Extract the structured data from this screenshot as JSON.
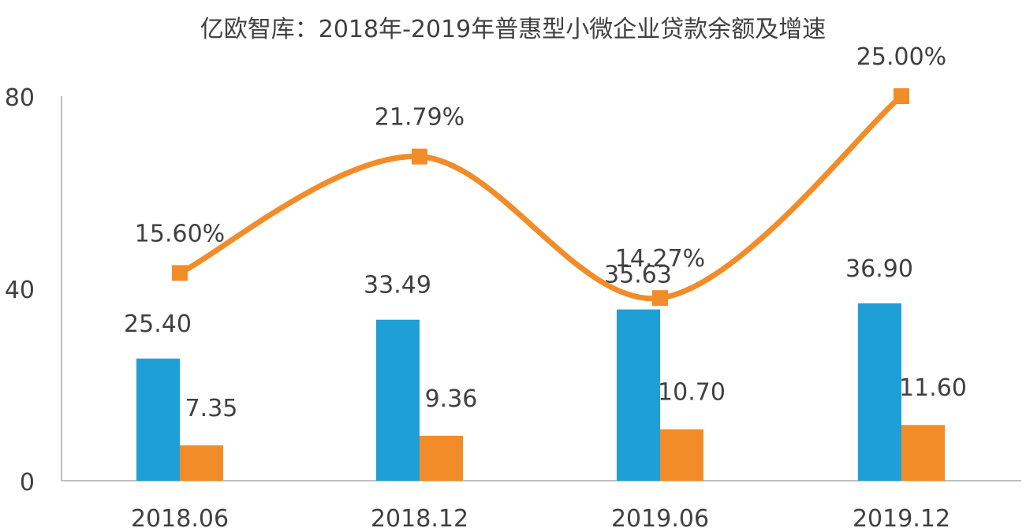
{
  "title": "亿欧智库：2018年-2019年普惠型小微企业贷款余额及增速",
  "colors": {
    "series_a": "#1e9fd5",
    "series_b": "#f28c28",
    "growth_line": "#f28c28",
    "axis": "#bfbfbf",
    "text": "#404040"
  },
  "chart_data": {
    "type": "bar",
    "title": "亿欧智库：2018年-2019年普惠型小微企业贷款余额及增速",
    "categories": [
      "2018.06",
      "2018.12",
      "2019.06",
      "2019.12"
    ],
    "series": [
      {
        "values": [
          25.4,
          33.49,
          35.63,
          36.9
        ],
        "labels": [
          "25.40",
          "33.49",
          "35.63",
          "36.90"
        ]
      },
      {
        "values": [
          7.35,
          9.36,
          10.7,
          11.6
        ],
        "labels": [
          "7.35",
          "9.36",
          "10.70",
          "11.60"
        ]
      }
    ],
    "line_series": {
      "type": "line",
      "smooth": true,
      "marker": "square",
      "values": [
        15.6,
        21.79,
        14.27,
        25.0
      ],
      "labels": [
        "15.60%",
        "21.79%",
        "14.27%",
        "25.00%"
      ]
    },
    "y_axis": {
      "ticks": [
        0,
        40,
        80
      ],
      "tick_labels": [
        "0",
        "40",
        "80"
      ],
      "ylim": [
        0,
        80
      ]
    },
    "grid": false,
    "legend": "none"
  }
}
